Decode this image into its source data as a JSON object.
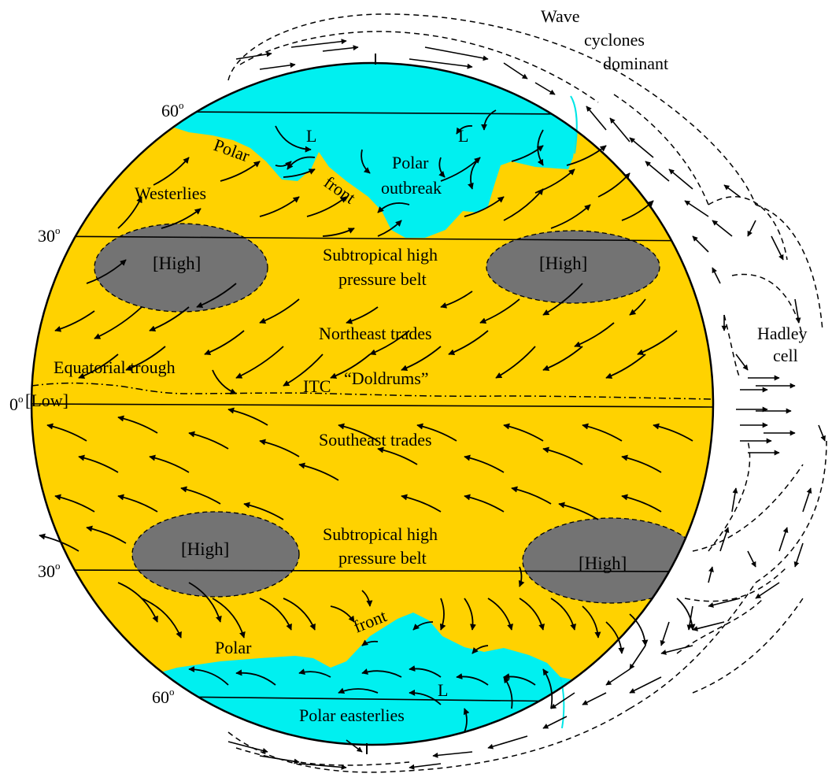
{
  "labels": {
    "wave_line1": "Wave",
    "wave_line2": "cyclones",
    "wave_line3": "dominant",
    "polar_nh": "Polar",
    "front_nh": "front",
    "westerlies": "Westerlies",
    "polar_outbreak_1": "Polar",
    "polar_outbreak_2": "outbreak",
    "low_l": "L",
    "high": "[High]",
    "subtropical_1": "Subtropical high",
    "subtropical_2": "pressure belt",
    "northeast_trades": "Northeast trades",
    "equatorial_trough": "Equatorial trough",
    "itc": "ITC",
    "doldrums": "“Doldrums”",
    "low_eq": "[Low]",
    "southeast_trades": "Southeast trades",
    "front_sh": "front",
    "polar_sh": "Polar",
    "polar_easterlies": "Polar easterlies",
    "hadley_1": "Hadley",
    "hadley_2": "cell"
  },
  "latitudes": {
    "n60": "60",
    "n30": "30",
    "eq": "0",
    "s30": "30",
    "s60": "60",
    "degree": "o"
  },
  "colors": {
    "globe": "#FFD200",
    "polar_air": "#00F0F0",
    "high_cell": "#737373",
    "outline": "#000000",
    "background": "#FFFFFF"
  }
}
